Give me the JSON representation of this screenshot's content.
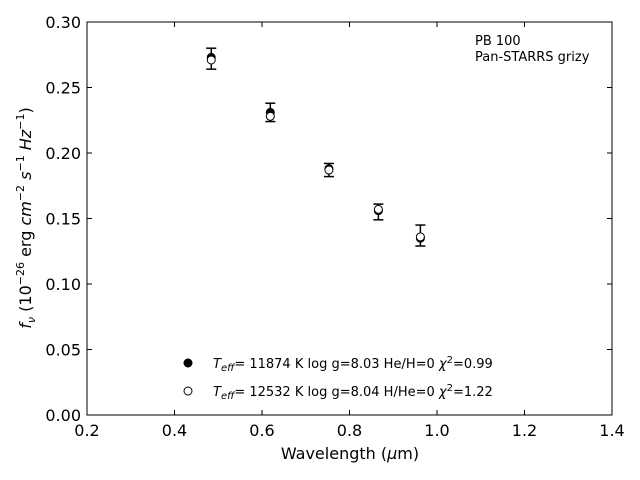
{
  "chart_data": {
    "type": "scatter",
    "xlabel_html": "Wavelength (<tspan font-style='italic'>μ</tspan>m)",
    "xlabel": "Wavelength (μm)",
    "ylabel": "f_ν (10^-26 erg cm^-2 s^-1 Hz^-1)",
    "xlim": [
      0.2,
      1.4
    ],
    "ylim": [
      0.0,
      0.3
    ],
    "xticks": [
      "0.2",
      "0.4",
      "0.6",
      "0.8",
      "1.0",
      "1.2",
      "1.4"
    ],
    "xtick_values": [
      0.2,
      0.4,
      0.6,
      0.8,
      1.0,
      1.2,
      1.4
    ],
    "yticks": [
      "0.00",
      "0.05",
      "0.10",
      "0.15",
      "0.20",
      "0.25",
      "0.30"
    ],
    "ytick_values": [
      0.0,
      0.05,
      0.1,
      0.15,
      0.2,
      0.25,
      0.3
    ],
    "grid": false,
    "annotation": [
      "PB 100",
      "Pan-STARRS grizy"
    ],
    "observed": {
      "x": [
        0.484,
        0.619,
        0.753,
        0.866,
        0.962
      ],
      "y": [
        0.272,
        0.231,
        0.187,
        0.155,
        0.137
      ],
      "yerr": [
        0.008,
        0.007,
        0.005,
        0.006,
        0.008
      ]
    },
    "series": [
      {
        "name": "Teff= 11874 K  log g=8.03  He/H=0  χ2=0.99",
        "marker": "filled-circle",
        "x": [
          0.484,
          0.619,
          0.753,
          0.866,
          0.962
        ],
        "y": [
          0.273,
          0.231,
          0.188,
          0.156,
          0.135
        ]
      },
      {
        "name": "Teff= 12532 K  log g=8.04  H/He=0  χ2=1.22",
        "marker": "open-circle",
        "x": [
          0.484,
          0.619,
          0.753,
          0.866,
          0.962
        ],
        "y": [
          0.271,
          0.228,
          0.187,
          0.157,
          0.136
        ]
      }
    ],
    "legend": {
      "placement": "bottom-center",
      "entries": [
        {
          "teff": "11874",
          "logg": "8.03",
          "ratio": "He/H=0",
          "chi2": "0.99"
        },
        {
          "teff": "12532",
          "logg": "8.04",
          "ratio": "H/He=0",
          "chi2": "1.22"
        }
      ]
    }
  }
}
